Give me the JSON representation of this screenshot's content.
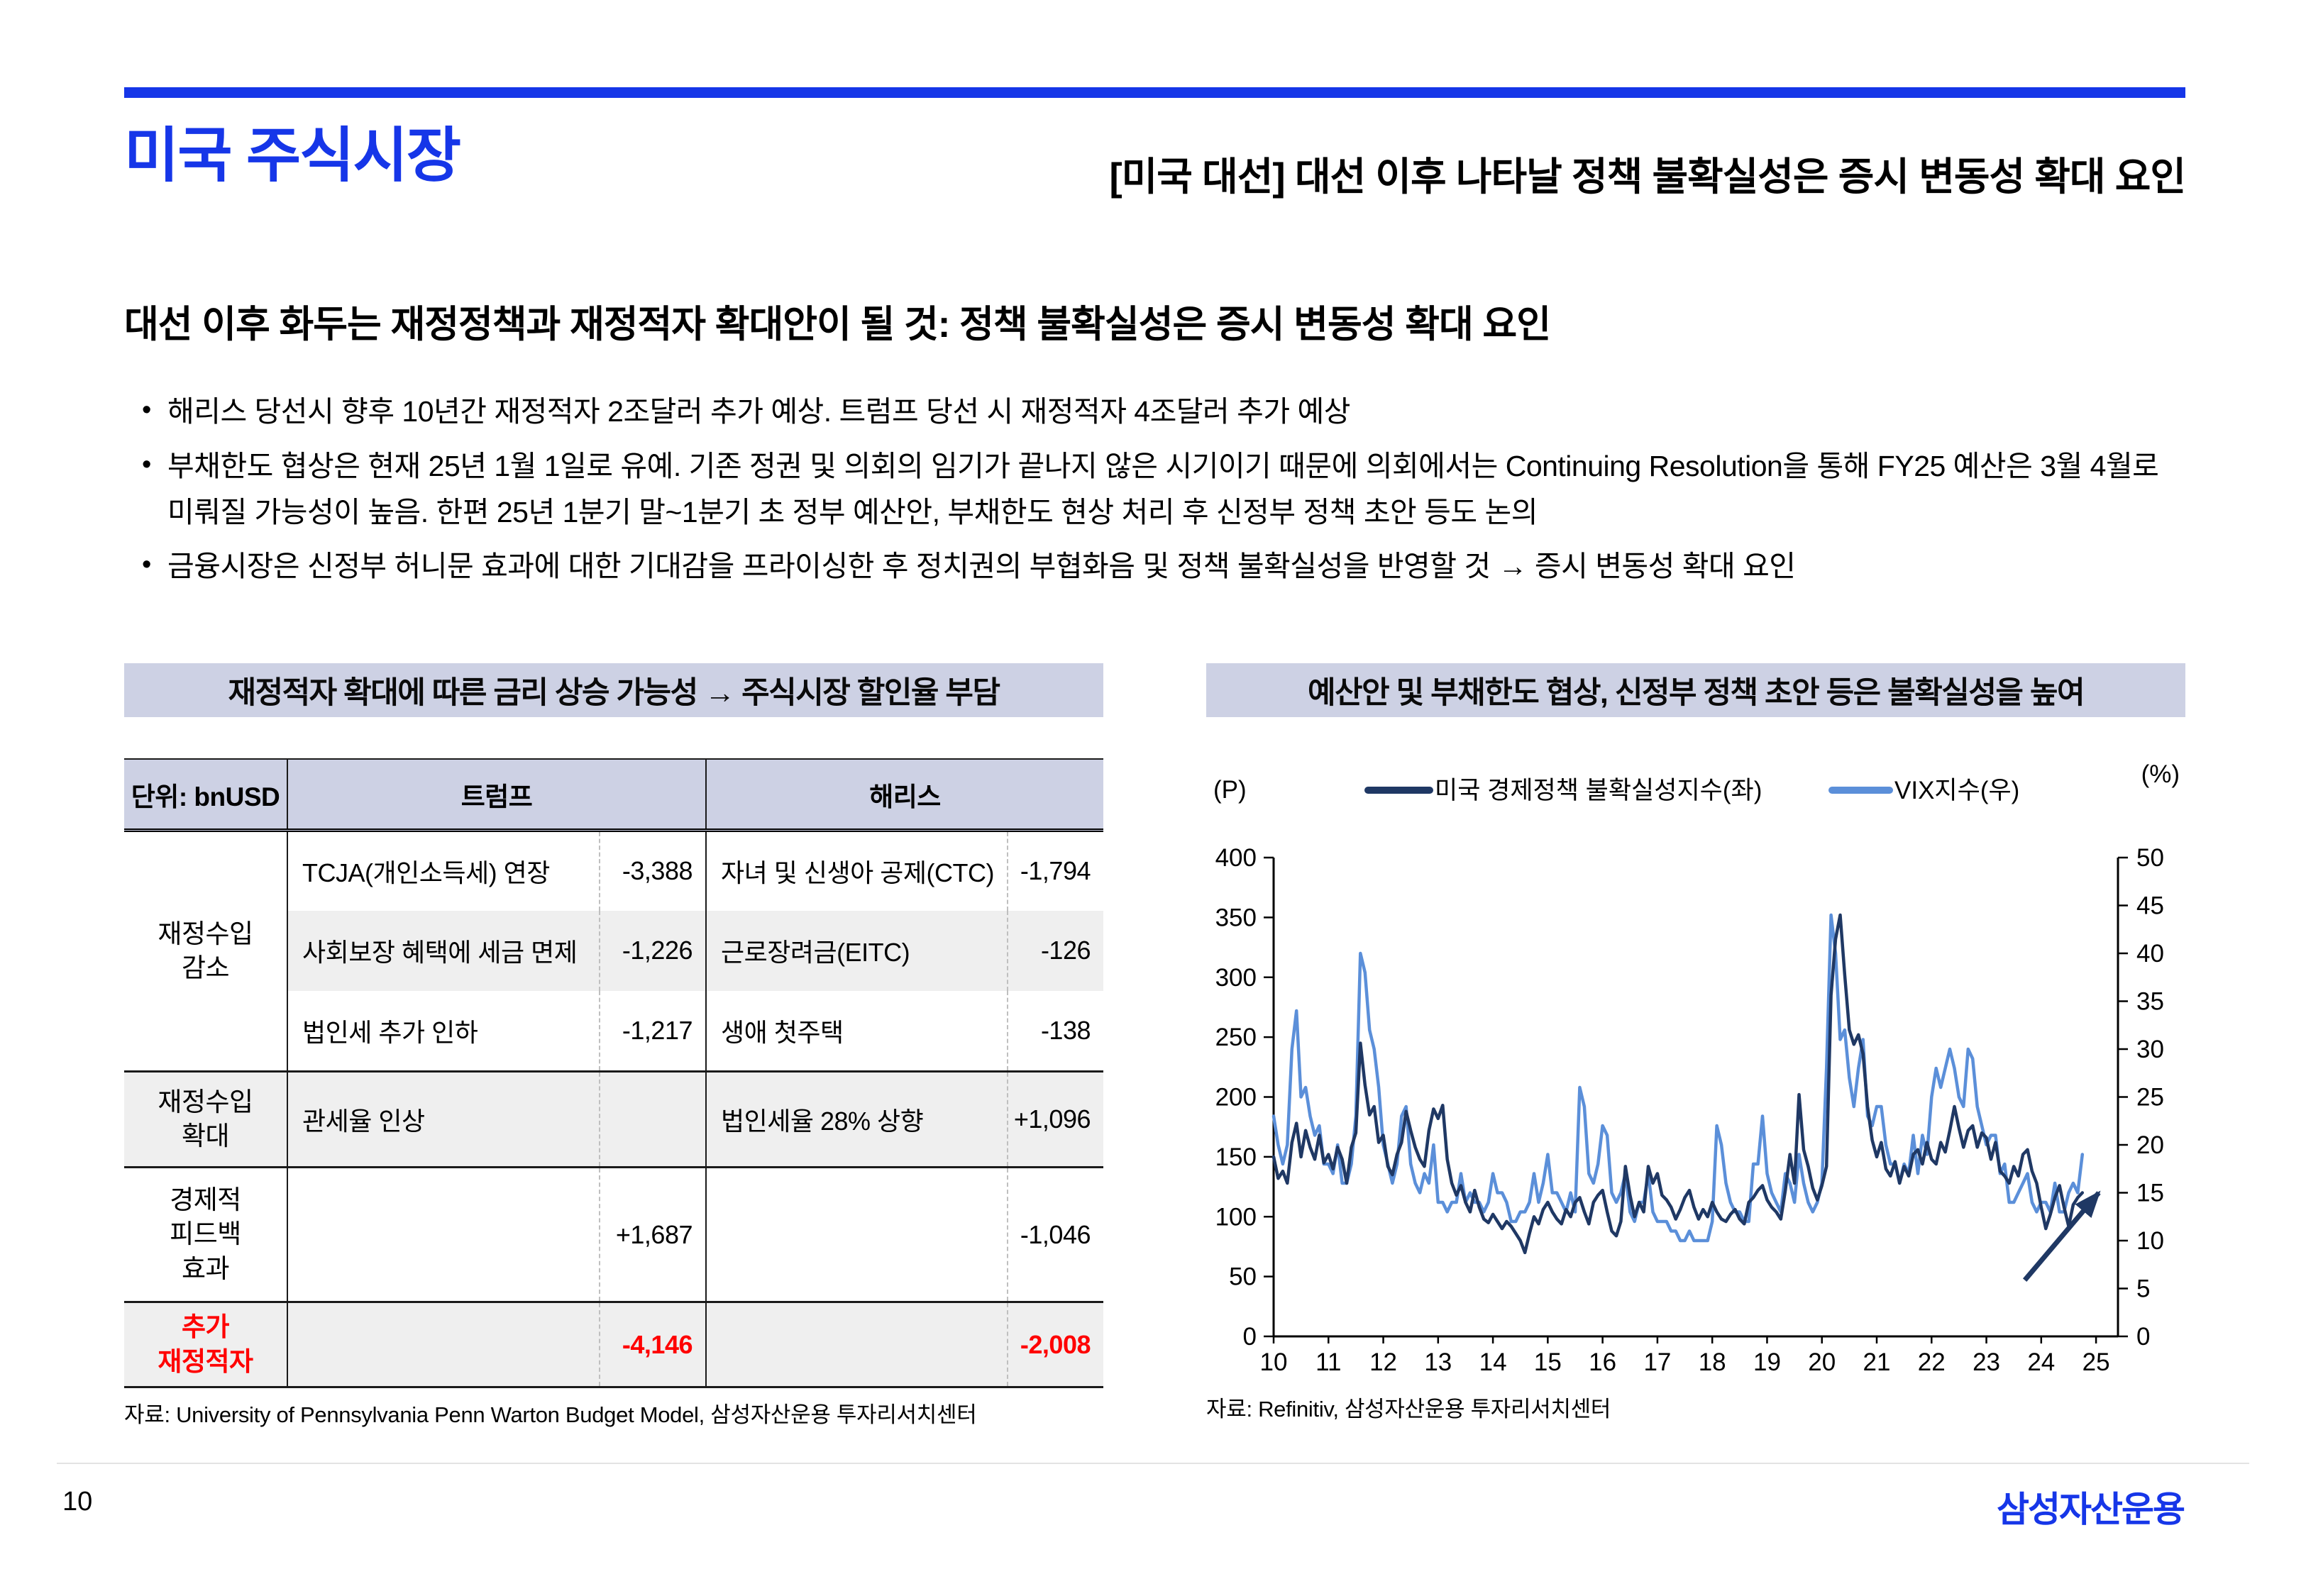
{
  "header": {
    "category": "미국 주식시장",
    "title": "[미국 대선] 대선 이후 나타날 정책 불확실성은 증시 변동성 확대 요인"
  },
  "lead": {
    "title": "대선 이후 화두는 재정정책과 재정적자 확대안이 될 것: 정책 불확실성은 증시 변동성 확대 요인",
    "bullets": [
      "해리스 당선시 향후 10년간 재정적자 2조달러 추가 예상. 트럼프 당선 시 재정적자 4조달러 추가 예상",
      "부채한도 협상은 현재 25년 1월 1일로 유예. 기존 정권 및 의회의 임기가 끝나지 않은 시기이기 때문에 의회에서는 Continuing Resolution을 통해 FY25 예산은 3월 4월로 미뤄질 가능성이 높음. 한편 25년 1분기 말~1분기 초 정부 예산안, 부채한도 현상 처리 후 신정부 정책 초안 등도 논의",
      "금융시장은 신정부 허니문 효과에 대한 기대감을 프라이싱한 후 정치권의 부협화음 및 정책 불확실성을 반영할 것 → 증시 변동성 확대 요인"
    ]
  },
  "left_panel": {
    "title": "재정적자 확대에 따른 금리 상승 가능성 → 주식시장 할인율 부담",
    "table": {
      "unit_label": "단위: bnUSD",
      "col_trump": "트럼프",
      "col_harris": "해리스",
      "groups": [
        {
          "label": "재정수입\n감소",
          "total": false,
          "rows": [
            {
              "trump_item": "TCJA(개인소득세) 연장",
              "trump_value": "-3,388",
              "harris_item": "자녀 및 신생아 공제(CTC)",
              "harris_value": "-1,794",
              "shade": false
            },
            {
              "trump_item": "사회보장 혜택에 세금 면제",
              "trump_value": "-1,226",
              "harris_item": "근로장려금(EITC)",
              "harris_value": "-126",
              "shade": true
            },
            {
              "trump_item": "법인세 추가 인하",
              "trump_value": "-1,217",
              "harris_item": "생애 첫주택",
              "harris_value": "-138",
              "shade": false
            }
          ]
        },
        {
          "label": "재정수입\n확대",
          "total": false,
          "rows": [
            {
              "trump_item": "관세율 인상",
              "trump_value": "",
              "harris_item": "법인세율 28% 상향",
              "harris_value": "+1,096",
              "shade": true
            }
          ]
        },
        {
          "label": "경제적\n피드백\n효과",
          "total": false,
          "rows": [
            {
              "trump_item": "",
              "trump_value": "+1,687",
              "harris_item": "",
              "harris_value": "-1,046",
              "shade": false
            }
          ]
        },
        {
          "label": "추가\n재정적자",
          "total": true,
          "rows": [
            {
              "trump_item": "",
              "trump_value": "-4,146",
              "harris_item": "",
              "harris_value": "-2,008",
              "shade": true
            }
          ]
        }
      ]
    },
    "source": "자료: University of Pennsylvania Penn Warton Budget Model, 삼성자산운용 투자리서치센터"
  },
  "right_panel": {
    "title": "예산안 및 부채한도 협상, 신정부 정책 초안 등은 불확실성을 높여",
    "source": "자료: Refinitiv, 삼성자산운용 투자리서치센터"
  },
  "chart_data": {
    "type": "line",
    "unit_left": "(P)",
    "unit_right": "(%)",
    "x_start_year": 2010,
    "x_ticks": [
      "10",
      "11",
      "12",
      "13",
      "14",
      "15",
      "16",
      "17",
      "18",
      "19",
      "20",
      "21",
      "22",
      "23",
      "24",
      "25"
    ],
    "x_axis_max_year": 2025.4,
    "ylim_left": [
      0,
      400
    ],
    "yticks_left": [
      0,
      50,
      100,
      150,
      200,
      250,
      300,
      350,
      400
    ],
    "ylim_right": [
      0,
      50
    ],
    "yticks_right": [
      0,
      5,
      10,
      15,
      20,
      25,
      30,
      35,
      40,
      45,
      50
    ],
    "grid": false,
    "legend_position": "top",
    "series": [
      {
        "name": "미국 경제정책 불확실성지수(좌)",
        "axis": "left",
        "color": "#1F3864",
        "values": [
          150,
          132,
          138,
          128,
          162,
          178,
          150,
          172,
          158,
          148,
          168,
          145,
          152,
          140,
          158,
          148,
          128,
          158,
          170,
          245,
          210,
          185,
          192,
          162,
          168,
          142,
          135,
          152,
          162,
          188,
          172,
          158,
          148,
          142,
          172,
          190,
          182,
          193,
          148,
          128,
          118,
          126,
          112,
          104,
          122,
          108,
          98,
          95,
          102,
          96,
          90,
          96,
          92,
          86,
          80,
          70,
          86,
          100,
          94,
          106,
          112,
          104,
          98,
          94,
          106,
          100,
          112,
          116,
          104,
          94,
          112,
          118,
          122,
          104,
          88,
          84,
          96,
          142,
          118,
          100,
          112,
          104,
          142,
          128,
          136,
          118,
          114,
          108,
          98,
          106,
          116,
          122,
          108,
          98,
          106,
          100,
          112,
          104,
          98,
          96,
          102,
          106,
          98,
          94,
          112,
          116,
          122,
          126,
          114,
          108,
          104,
          98,
          122,
          152,
          128,
          202,
          156,
          142,
          124,
          114,
          126,
          142,
          285,
          332,
          352,
          302,
          256,
          244,
          252,
          236,
          192,
          164,
          150,
          162,
          140,
          134,
          146,
          128,
          142,
          134,
          152,
          156,
          144,
          162,
          148,
          144,
          162,
          154,
          172,
          192,
          174,
          158,
          172,
          176,
          158,
          170,
          166,
          148,
          162,
          138,
          134,
          128,
          142,
          134,
          152,
          156,
          138,
          128,
          108,
          90,
          102,
          116,
          126,
          108,
          92,
          110,
          116,
          120
        ]
      },
      {
        "name": "VIX지수(우)",
        "axis": "right",
        "color": "#5B8FD9",
        "values": [
          23,
          20,
          18,
          20,
          30,
          34,
          25,
          26,
          23,
          21,
          22,
          18,
          18,
          17,
          20,
          16,
          16,
          18,
          23,
          40,
          38,
          32,
          30,
          26,
          20,
          18,
          16,
          18,
          23,
          24,
          18,
          16,
          15,
          17,
          16,
          20,
          14,
          14,
          13,
          14,
          14,
          17,
          14,
          15,
          14,
          14,
          13,
          14,
          17,
          15,
          15,
          14,
          12,
          12,
          13,
          13,
          14,
          17,
          14,
          16,
          19,
          15,
          15,
          14,
          13,
          15,
          13,
          26,
          24,
          17,
          16,
          18,
          22,
          21,
          15,
          14,
          15,
          17,
          13,
          12,
          14,
          14,
          17,
          13,
          12,
          12,
          12,
          11,
          11,
          10,
          10,
          11,
          10,
          10,
          10,
          10,
          12,
          22,
          20,
          16,
          14,
          13,
          13,
          12,
          12,
          18,
          18,
          23,
          17,
          15,
          14,
          13,
          17,
          16,
          14,
          19,
          16,
          14,
          13,
          14,
          16,
          28,
          44,
          40,
          31,
          32,
          27,
          24,
          28,
          31,
          23,
          22,
          24,
          24,
          20,
          18,
          18,
          16,
          18,
          17,
          21,
          17,
          21,
          19,
          25,
          28,
          26,
          28,
          30,
          28,
          25,
          24,
          30,
          29,
          24,
          22,
          20,
          21,
          21,
          17,
          18,
          14,
          14,
          15,
          16,
          17,
          14,
          13,
          14,
          14,
          13,
          16,
          13,
          13,
          15,
          16,
          15,
          19
        ]
      }
    ],
    "annotation_arrow": {
      "axis": "left",
      "from_year": 2023.7,
      "from_value": 47,
      "to_year": 2025.05,
      "to_value": 120,
      "color": "#1F3864"
    }
  },
  "footer": {
    "page_number": "10",
    "logo": "삼성자산운용"
  },
  "colors": {
    "accent_blue": "#1636E8",
    "panel_header_bg": "#CDD1E4",
    "table_shade": "#EFEFEF",
    "negative_red": "#FF0000",
    "epu_line": "#1F3864",
    "vix_line": "#5B8FD9"
  }
}
